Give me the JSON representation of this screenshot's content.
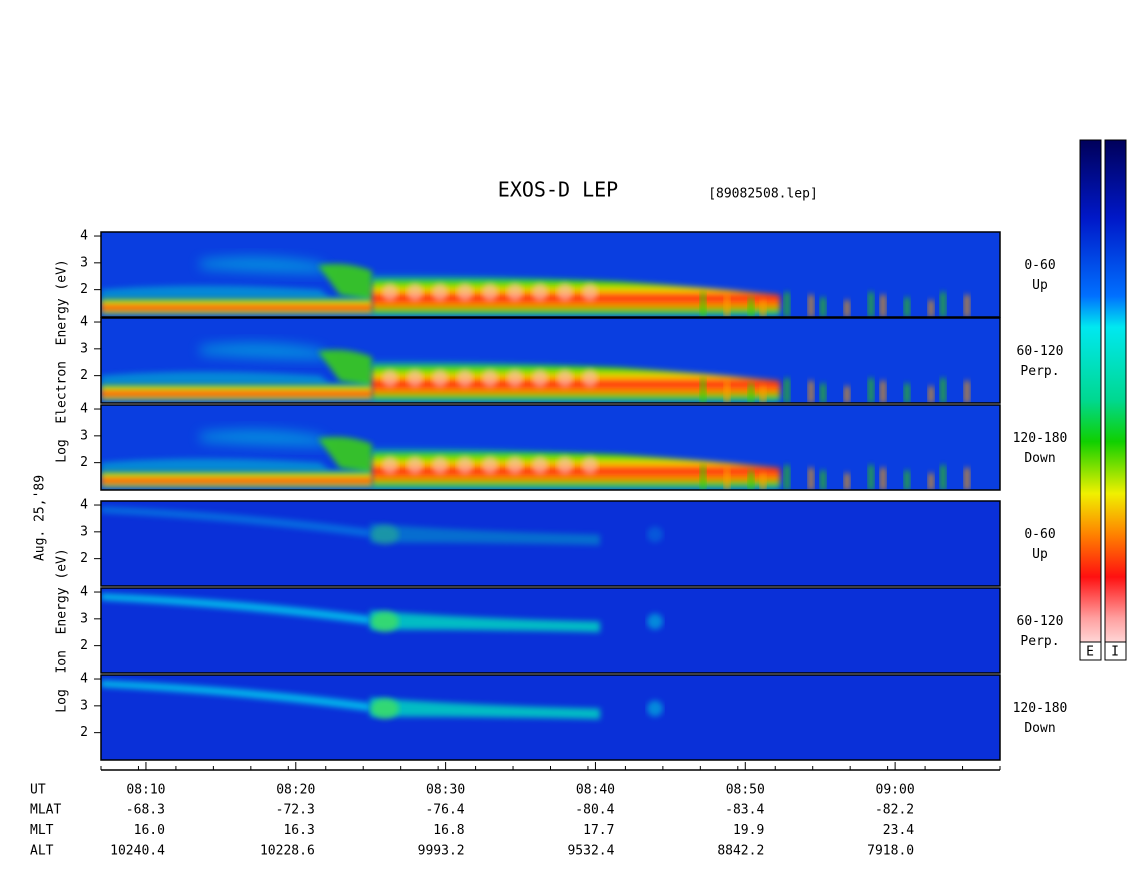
{
  "chart_data": {
    "type": "spectrogram",
    "title": "EXOS-D LEP",
    "subtitle": "[89082508.lep]",
    "date_label": "Aug. 25,'89",
    "xlim": [
      "08:07",
      "09:07"
    ],
    "xticks": [
      "08:10",
      "08:20",
      "08:30",
      "08:40",
      "08:50",
      "09:00"
    ],
    "ylim": [
      0.98,
      4.15
    ],
    "yticks": [
      2,
      3,
      4
    ],
    "groups": [
      {
        "name": "electron",
        "ylabel": "Log  Electron  Energy (eV)",
        "panels": [
          {
            "label": [
              "0-60",
              "Up"
            ]
          },
          {
            "label": [
              "60-120",
              "Perp."
            ]
          },
          {
            "label": [
              "120-180",
              "Down"
            ]
          }
        ]
      },
      {
        "name": "ion",
        "ylabel": "Log  Ion  Energy (eV)",
        "panels": [
          {
            "label": [
              "0-60",
              "Up"
            ]
          },
          {
            "label": [
              "60-120",
              "Perp."
            ]
          },
          {
            "label": [
              "120-180",
              "Down"
            ]
          }
        ]
      }
    ],
    "orbit_table": {
      "x_label": "UT",
      "rows": [
        {
          "label": "MLAT",
          "values": [
            "-68.3",
            "-72.3",
            "-76.4",
            "-80.4",
            "-83.4",
            "-82.2"
          ]
        },
        {
          "label": "MLT",
          "values": [
            "16.0",
            "16.3",
            "16.8",
            "17.7",
            "19.9",
            "23.4"
          ]
        },
        {
          "label": "ALT",
          "values": [
            "10240.4",
            "10228.6",
            "9993.2",
            "9532.4",
            "8842.2",
            "7918.0"
          ]
        }
      ]
    },
    "colorbar_labels": [
      "E",
      "I"
    ]
  }
}
